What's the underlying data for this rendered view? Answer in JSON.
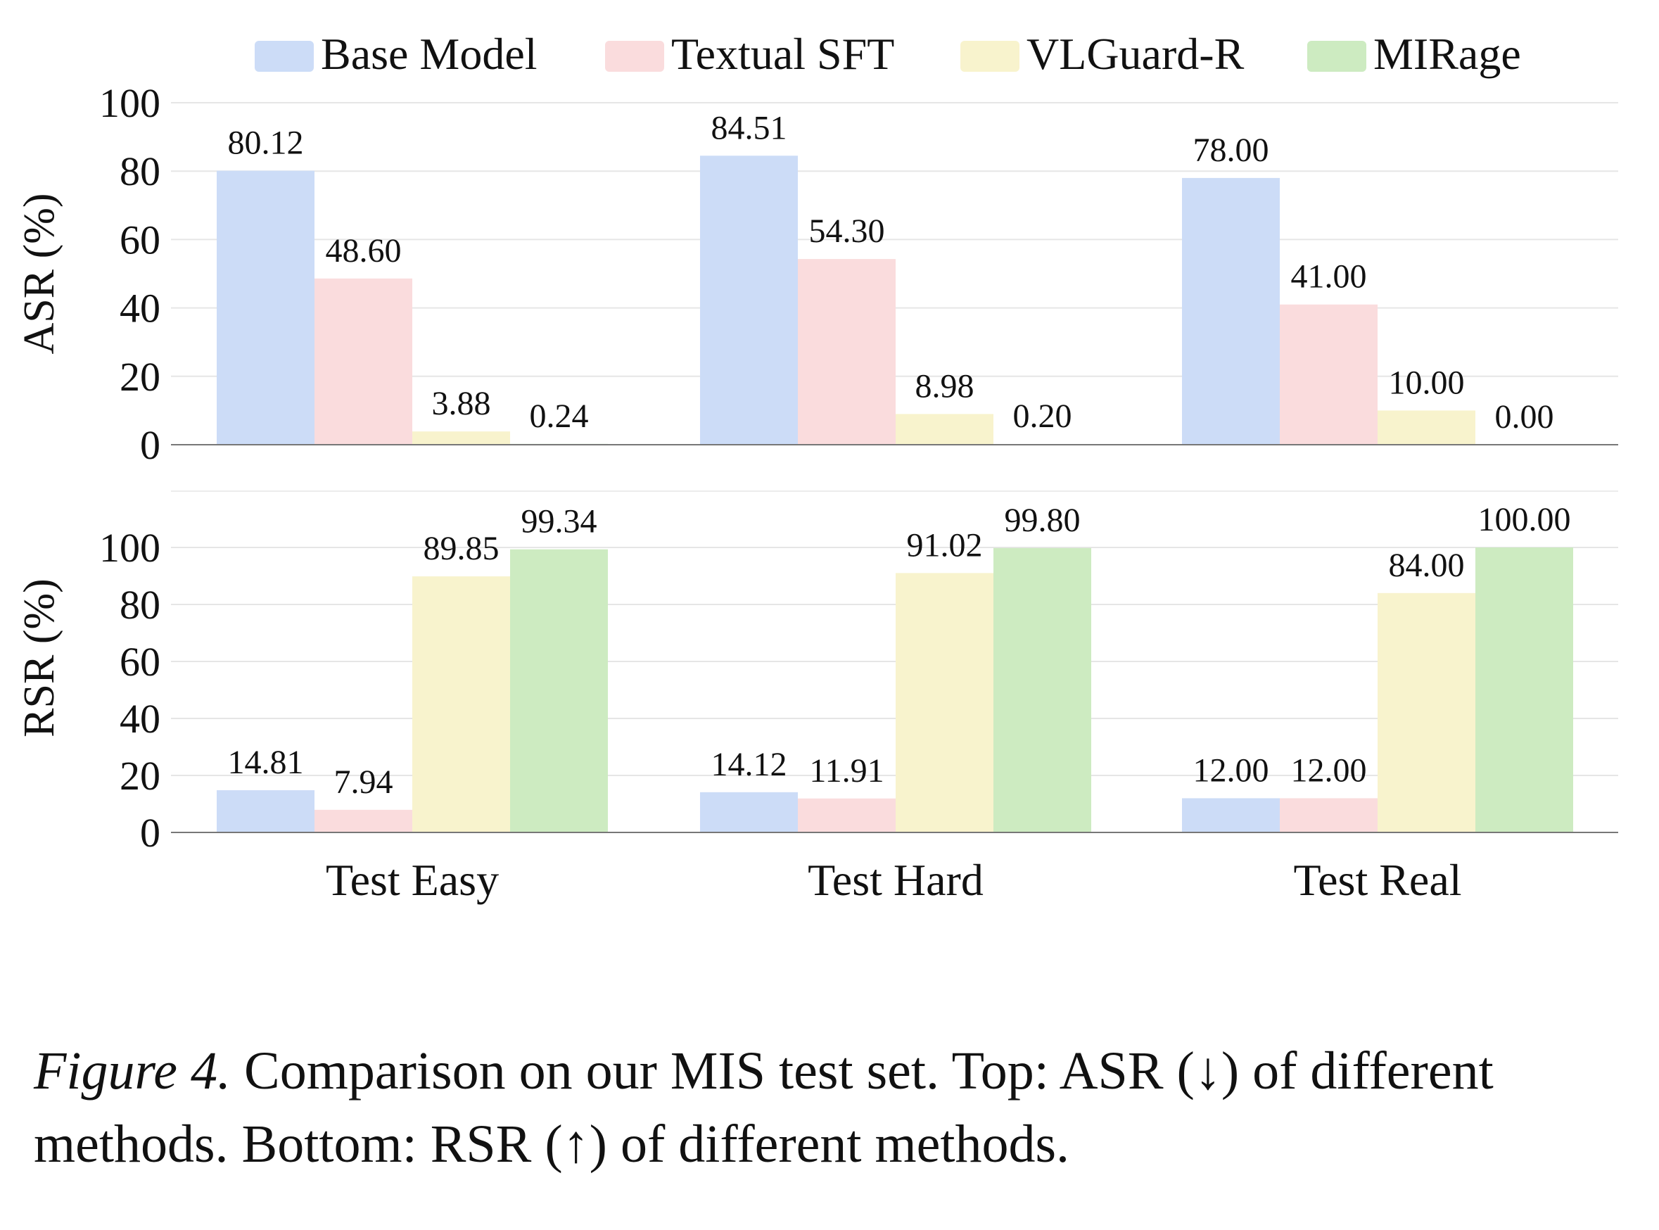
{
  "caption": {
    "label": "Figure 4.",
    "text": "Comparison on our MIS test set. Top: ASR (↓) of different methods. Bottom: RSR (↑) of different methods."
  },
  "legend_colors": [
    "#ccdcf7",
    "#fadcdd",
    "#f8f3cd",
    "#cdebc1"
  ],
  "chart_data": [
    {
      "type": "bar",
      "ylabel": "ASR (%)",
      "ylim": [
        0,
        100
      ],
      "yticks": [
        0,
        20,
        40,
        60,
        80,
        100
      ],
      "grid": true,
      "legend": "top",
      "categories": [
        "Test Easy",
        "Test Hard",
        "Test Real"
      ],
      "series": [
        {
          "name": "Base Model",
          "values": [
            80.12,
            84.51,
            78.0
          ],
          "labels": [
            "80.12",
            "84.51",
            "78.00"
          ]
        },
        {
          "name": "Textual SFT",
          "values": [
            48.6,
            54.3,
            41.0
          ],
          "labels": [
            "48.60",
            "54.30",
            "41.00"
          ]
        },
        {
          "name": "VLGuard-R",
          "values": [
            3.88,
            8.98,
            10.0
          ],
          "labels": [
            "3.88",
            "8.98",
            "10.00"
          ]
        },
        {
          "name": "MIRage",
          "values": [
            0.24,
            0.2,
            0.0
          ],
          "labels": [
            "0.24",
            "0.20",
            "0.00"
          ]
        }
      ]
    },
    {
      "type": "bar",
      "ylabel": "RSR (%)",
      "ylim": [
        0,
        100
      ],
      "yticks": [
        0,
        20,
        40,
        60,
        80,
        100
      ],
      "grid": true,
      "categories": [
        "Test Easy",
        "Test Hard",
        "Test Real"
      ],
      "series": [
        {
          "name": "Base Model",
          "values": [
            14.81,
            14.12,
            12.0
          ],
          "labels": [
            "14.81",
            "14.12",
            "12.00"
          ]
        },
        {
          "name": "Textual SFT",
          "values": [
            7.94,
            11.91,
            12.0
          ],
          "labels": [
            "7.94",
            "11.91",
            "12.00"
          ]
        },
        {
          "name": "VLGuard-R",
          "values": [
            89.85,
            91.02,
            84.0
          ],
          "labels": [
            "89.85",
            "91.02",
            "84.00"
          ]
        },
        {
          "name": "MIRage",
          "values": [
            99.34,
            99.8,
            100.0
          ],
          "labels": [
            "99.34",
            "99.80",
            "100.00"
          ]
        }
      ]
    }
  ]
}
